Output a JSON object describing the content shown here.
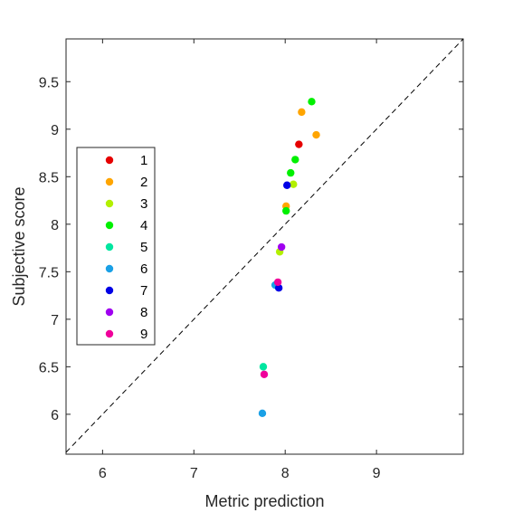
{
  "chart_data": {
    "type": "scatter",
    "title": "",
    "xlabel": "Metric prediction",
    "ylabel": "Subjective score",
    "xlim": [
      5.6,
      9.95
    ],
    "ylim": [
      5.58,
      9.95
    ],
    "xticks": [
      6,
      7,
      8,
      9
    ],
    "xtick_labels": [
      "6",
      "7",
      "8",
      "9"
    ],
    "yticks": [
      6,
      6.5,
      7,
      7.5,
      8,
      8.5,
      9,
      9.5
    ],
    "ytick_labels": [
      "6",
      "6.5",
      "7",
      "7.5",
      "8",
      "8.5",
      "9",
      "9.5"
    ],
    "grid": false,
    "reference_line": "y = x (dashed)",
    "legend_position": "left",
    "series": [
      {
        "name": "1",
        "color": "#e60000",
        "points": [
          [
            8.15,
            8.84
          ]
        ]
      },
      {
        "name": "2",
        "color": "#ffa500",
        "points": [
          [
            8.18,
            9.18
          ],
          [
            8.34,
            8.94
          ],
          [
            8.01,
            8.19
          ]
        ]
      },
      {
        "name": "3",
        "color": "#b3f000",
        "points": [
          [
            8.09,
            8.42
          ],
          [
            7.94,
            7.71
          ]
        ]
      },
      {
        "name": "4",
        "color": "#00f000",
        "points": [
          [
            8.29,
            9.29
          ],
          [
            8.11,
            8.68
          ],
          [
            8.06,
            8.54
          ],
          [
            8.01,
            8.14
          ]
        ]
      },
      {
        "name": "5",
        "color": "#00e6a0",
        "points": [
          [
            7.76,
            6.5
          ]
        ]
      },
      {
        "name": "6",
        "color": "#1aa0e6",
        "points": [
          [
            7.89,
            7.36
          ],
          [
            7.75,
            6.01
          ]
        ]
      },
      {
        "name": "7",
        "color": "#0000e6",
        "points": [
          [
            8.02,
            8.41
          ],
          [
            7.93,
            7.33
          ]
        ]
      },
      {
        "name": "8",
        "color": "#a000f0",
        "points": [
          [
            7.96,
            7.76
          ]
        ]
      },
      {
        "name": "9",
        "color": "#f0009b",
        "points": [
          [
            7.92,
            7.39
          ],
          [
            7.77,
            6.42
          ]
        ]
      }
    ]
  }
}
